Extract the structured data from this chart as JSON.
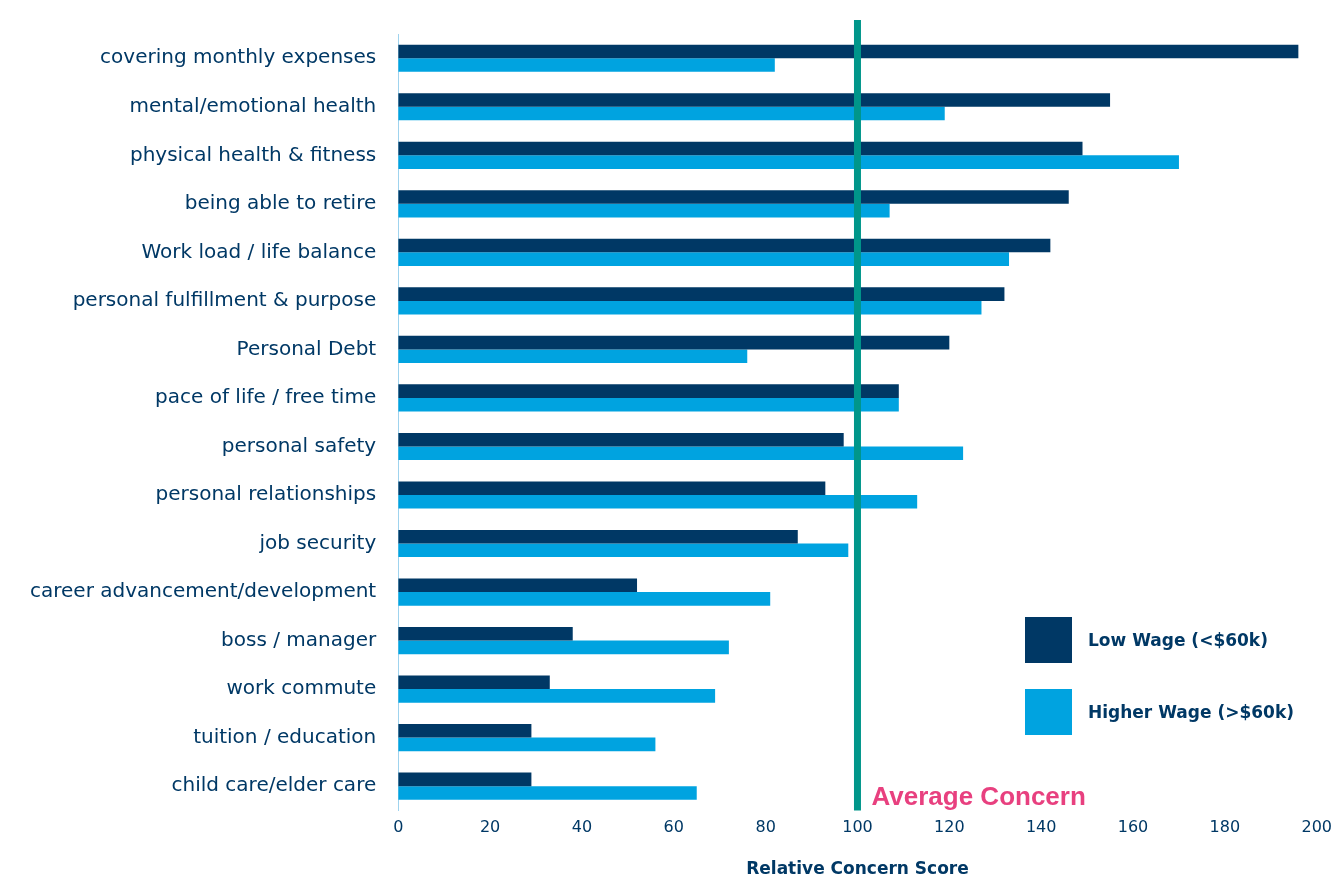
{
  "chart_data": {
    "type": "bar",
    "orientation": "horizontal",
    "xlabel": "Relative Concern Score",
    "categories": [
      "covering monthly expenses",
      "mental/emotional health",
      "physical health & fitness",
      "being able to retire",
      "Work load / life balance",
      "personal fulfillment & purpose",
      "Personal Debt",
      "pace of life / free time",
      "personal safety",
      "personal relationships",
      "job security",
      "career advancement/development",
      "boss / manager",
      "work commute",
      "tuition / education",
      "child care/elder care"
    ],
    "series": [
      {
        "name": "Low Wage (<$60k)",
        "color": "#003865",
        "values": [
          196,
          155,
          149,
          146,
          142,
          132,
          120,
          109,
          97,
          93,
          87,
          52,
          38,
          33,
          29,
          29
        ]
      },
      {
        "name": "Higher Wage (>$60k)",
        "color": "#00a3e0",
        "values": [
          82,
          119,
          170,
          107,
          133,
          127,
          76,
          109,
          123,
          113,
          98,
          81,
          72,
          69,
          56,
          65
        ]
      }
    ],
    "xlim": [
      0,
      200
    ],
    "xticks": [
      0,
      20,
      40,
      60,
      80,
      100,
      120,
      140,
      160,
      180,
      200
    ],
    "ref_lines": [
      {
        "axis": "x",
        "value": 100,
        "label": "Average Concern",
        "color": "#00968a"
      }
    ],
    "grid": false,
    "legend": "bottom right"
  }
}
